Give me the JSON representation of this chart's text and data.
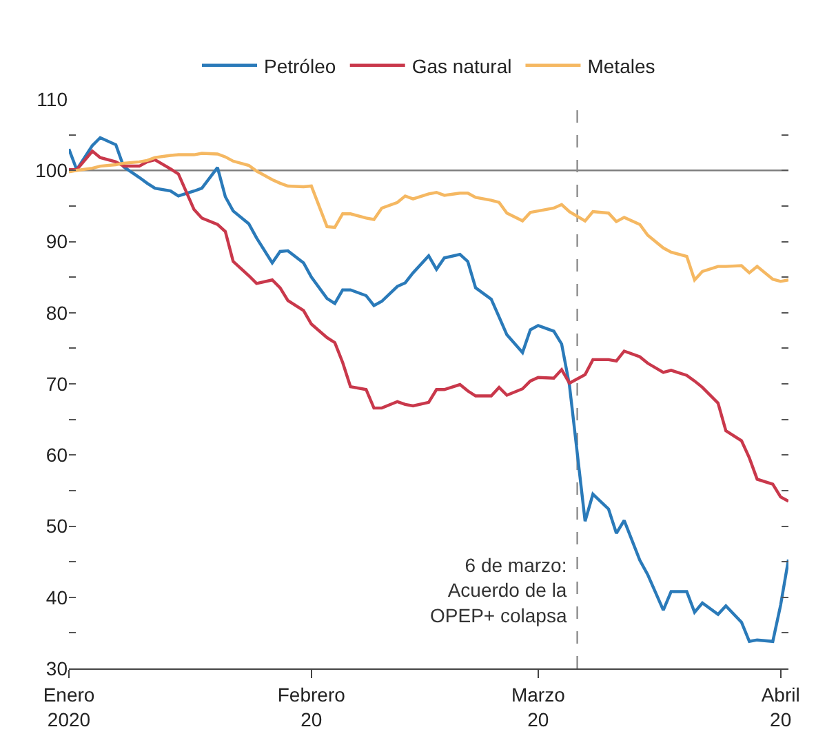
{
  "chart_data": {
    "type": "line",
    "x": [
      "2020-01-01",
      "2020-01-02",
      "2020-01-04",
      "2020-01-05",
      "2020-01-07",
      "2020-01-08",
      "2020-01-10",
      "2020-01-11",
      "2020-01-12",
      "2020-01-14",
      "2020-01-15",
      "2020-01-17",
      "2020-01-18",
      "2020-01-20",
      "2020-01-21",
      "2020-01-22",
      "2020-01-24",
      "2020-01-25",
      "2020-01-27",
      "2020-01-28",
      "2020-01-29",
      "2020-01-31",
      "2020-02-01",
      "2020-02-03",
      "2020-02-04",
      "2020-02-05",
      "2020-02-06",
      "2020-02-08",
      "2020-02-09",
      "2020-02-10",
      "2020-02-12",
      "2020-02-13",
      "2020-02-14",
      "2020-02-16",
      "2020-02-17",
      "2020-02-18",
      "2020-02-20",
      "2020-02-21",
      "2020-02-22",
      "2020-02-24",
      "2020-02-25",
      "2020-02-26",
      "2020-02-28",
      "2020-02-29",
      "2020-03-01",
      "2020-03-03",
      "2020-03-04",
      "2020-03-05",
      "2020-03-07",
      "2020-03-08",
      "2020-03-10",
      "2020-03-11",
      "2020-03-12",
      "2020-03-14",
      "2020-03-15",
      "2020-03-17",
      "2020-03-18",
      "2020-03-20",
      "2020-03-21",
      "2020-03-22",
      "2020-03-24",
      "2020-03-25",
      "2020-03-27",
      "2020-03-28",
      "2020-03-29",
      "2020-03-31",
      "2020-04-01",
      "2020-04-02"
    ],
    "series": [
      {
        "name": "Petróleo",
        "color": "#2a7ab9",
        "values": [
          103.0,
          100.1,
          103.5,
          104.6,
          103.6,
          100.5,
          99.0,
          98.2,
          97.5,
          97.1,
          96.4,
          97.1,
          97.5,
          100.4,
          96.3,
          94.3,
          92.5,
          90.5,
          87.0,
          88.6,
          88.7,
          87.0,
          85.0,
          82.0,
          81.3,
          83.2,
          83.2,
          82.4,
          81.0,
          81.6,
          83.7,
          84.2,
          85.6,
          88.0,
          86.1,
          87.7,
          88.2,
          87.2,
          83.5,
          81.9,
          79.4,
          76.9,
          74.4,
          77.6,
          78.2,
          77.4,
          75.6,
          69.8,
          50.7,
          54.5,
          52.4,
          49.0,
          50.8,
          45.2,
          43.2,
          38.2,
          40.8,
          40.8,
          37.9,
          39.2,
          37.6,
          38.8,
          36.5,
          33.8,
          34.0,
          33.8,
          38.9,
          45.3
        ]
      },
      {
        "name": "Gas natural",
        "color": "#c9384b",
        "values": [
          100.1,
          100.1,
          102.7,
          101.8,
          101.2,
          100.6,
          100.6,
          101.2,
          101.5,
          100.2,
          99.5,
          94.5,
          93.3,
          92.4,
          91.4,
          87.2,
          85.2,
          84.1,
          84.6,
          83.5,
          81.7,
          80.3,
          78.4,
          76.5,
          75.8,
          73.0,
          69.6,
          69.2,
          66.6,
          66.6,
          67.5,
          67.1,
          66.9,
          67.4,
          69.2,
          69.2,
          69.9,
          69.0,
          68.3,
          68.3,
          69.5,
          68.4,
          69.3,
          70.4,
          70.9,
          70.8,
          72.0,
          70.1,
          71.3,
          73.4,
          73.4,
          73.2,
          74.6,
          73.8,
          72.9,
          71.6,
          71.9,
          71.2,
          70.4,
          69.5,
          67.3,
          63.4,
          62.0,
          59.6,
          56.6,
          55.9,
          54.1,
          53.5
        ]
      },
      {
        "name": "Metales",
        "color": "#f5b862",
        "values": [
          99.8,
          100.0,
          100.3,
          100.6,
          100.8,
          101.0,
          101.2,
          101.4,
          101.8,
          102.1,
          102.2,
          102.2,
          102.4,
          102.3,
          101.9,
          101.3,
          100.7,
          99.9,
          98.7,
          98.2,
          97.8,
          97.7,
          97.8,
          92.1,
          92.0,
          93.9,
          93.9,
          93.3,
          93.1,
          94.7,
          95.5,
          96.4,
          96.0,
          96.7,
          96.9,
          96.5,
          96.8,
          96.8,
          96.2,
          95.8,
          95.5,
          94.0,
          92.9,
          94.1,
          94.3,
          94.7,
          95.2,
          94.2,
          92.9,
          94.2,
          94.0,
          92.8,
          93.4,
          92.4,
          90.9,
          89.1,
          88.5,
          87.9,
          84.6,
          85.8,
          86.5,
          86.5,
          86.6,
          85.6,
          86.5,
          84.7,
          84.4,
          84.6
        ]
      }
    ],
    "xlim": [
      "2020-01-01",
      "2020-04-02"
    ],
    "xticks": [
      {
        "value": "2020-01-01",
        "label": "Enero\n2020"
      },
      {
        "value": "2020-02-01",
        "label": "Febrero\n20"
      },
      {
        "value": "2020-03-01",
        "label": "Marzo\n20"
      },
      {
        "value": "2020-04-01",
        "label": "Abril\n20"
      }
    ],
    "ylim": [
      30,
      110
    ],
    "yticks": [
      30,
      {
        "value": 35,
        "label": null
      },
      40,
      {
        "value": 45,
        "label": null
      },
      50,
      {
        "value": 55,
        "label": null
      },
      60,
      {
        "value": 65,
        "label": null
      },
      70,
      {
        "value": 75,
        "label": null
      },
      80,
      {
        "value": 85,
        "label": null
      },
      90,
      {
        "value": 95,
        "label": null
      },
      100,
      {
        "value": 105,
        "label": null
      },
      110
    ],
    "ref_lines": [
      {
        "axis": "y",
        "value": 100,
        "label": null,
        "color": "#7f7f7f",
        "line_style": "solid"
      },
      {
        "axis": "x",
        "value": "2020-03-06",
        "label": null,
        "color": "#8c8c8c",
        "line_style": "dashed"
      }
    ],
    "annotations": [
      {
        "text": "6 de marzo:\nAcuerdo de la\nOPEP+ colapsa",
        "x": "2020-03-06",
        "y": 41
      }
    ],
    "legend": "top",
    "grid": false,
    "marker": "none",
    "line_style": "solid"
  }
}
